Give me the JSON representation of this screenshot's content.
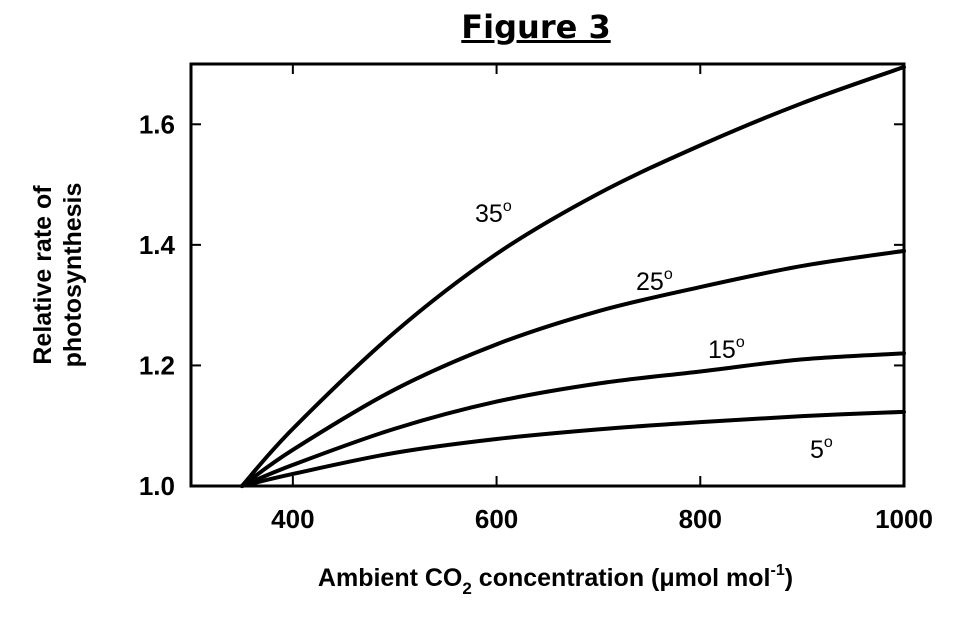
{
  "chart_data": {
    "type": "line",
    "title": "Figure 3",
    "xlabel": {
      "prefix": "Ambient CO",
      "sub": "2",
      "middle": " concentration (μmol mol",
      "sup": "-1",
      "suffix": ")"
    },
    "ylabel": [
      "Relative rate of",
      "photosynthesis"
    ],
    "xlim": [
      300,
      1000
    ],
    "ylim": [
      1.0,
      1.7
    ],
    "x_ticks": [
      400,
      600,
      800,
      1000
    ],
    "y_ticks": [
      "1.0",
      "1.2",
      "1.4",
      "1.6"
    ],
    "grid": false,
    "x": [
      350,
      400,
      500,
      600,
      700,
      800,
      900,
      1000
    ],
    "series": [
      {
        "name": "35",
        "label_sup": "o",
        "values": [
          1.0,
          1.095,
          1.255,
          1.385,
          1.485,
          1.565,
          1.635,
          1.695
        ]
      },
      {
        "name": "25",
        "label_sup": "o",
        "values": [
          1.0,
          1.06,
          1.16,
          1.235,
          1.29,
          1.33,
          1.365,
          1.39
        ]
      },
      {
        "name": "15",
        "label_sup": "o",
        "values": [
          1.0,
          1.035,
          1.095,
          1.14,
          1.17,
          1.19,
          1.21,
          1.22
        ]
      },
      {
        "name": "5",
        "label_sup": "o",
        "values": [
          1.0,
          1.02,
          1.055,
          1.078,
          1.094,
          1.106,
          1.116,
          1.123
        ]
      }
    ]
  }
}
